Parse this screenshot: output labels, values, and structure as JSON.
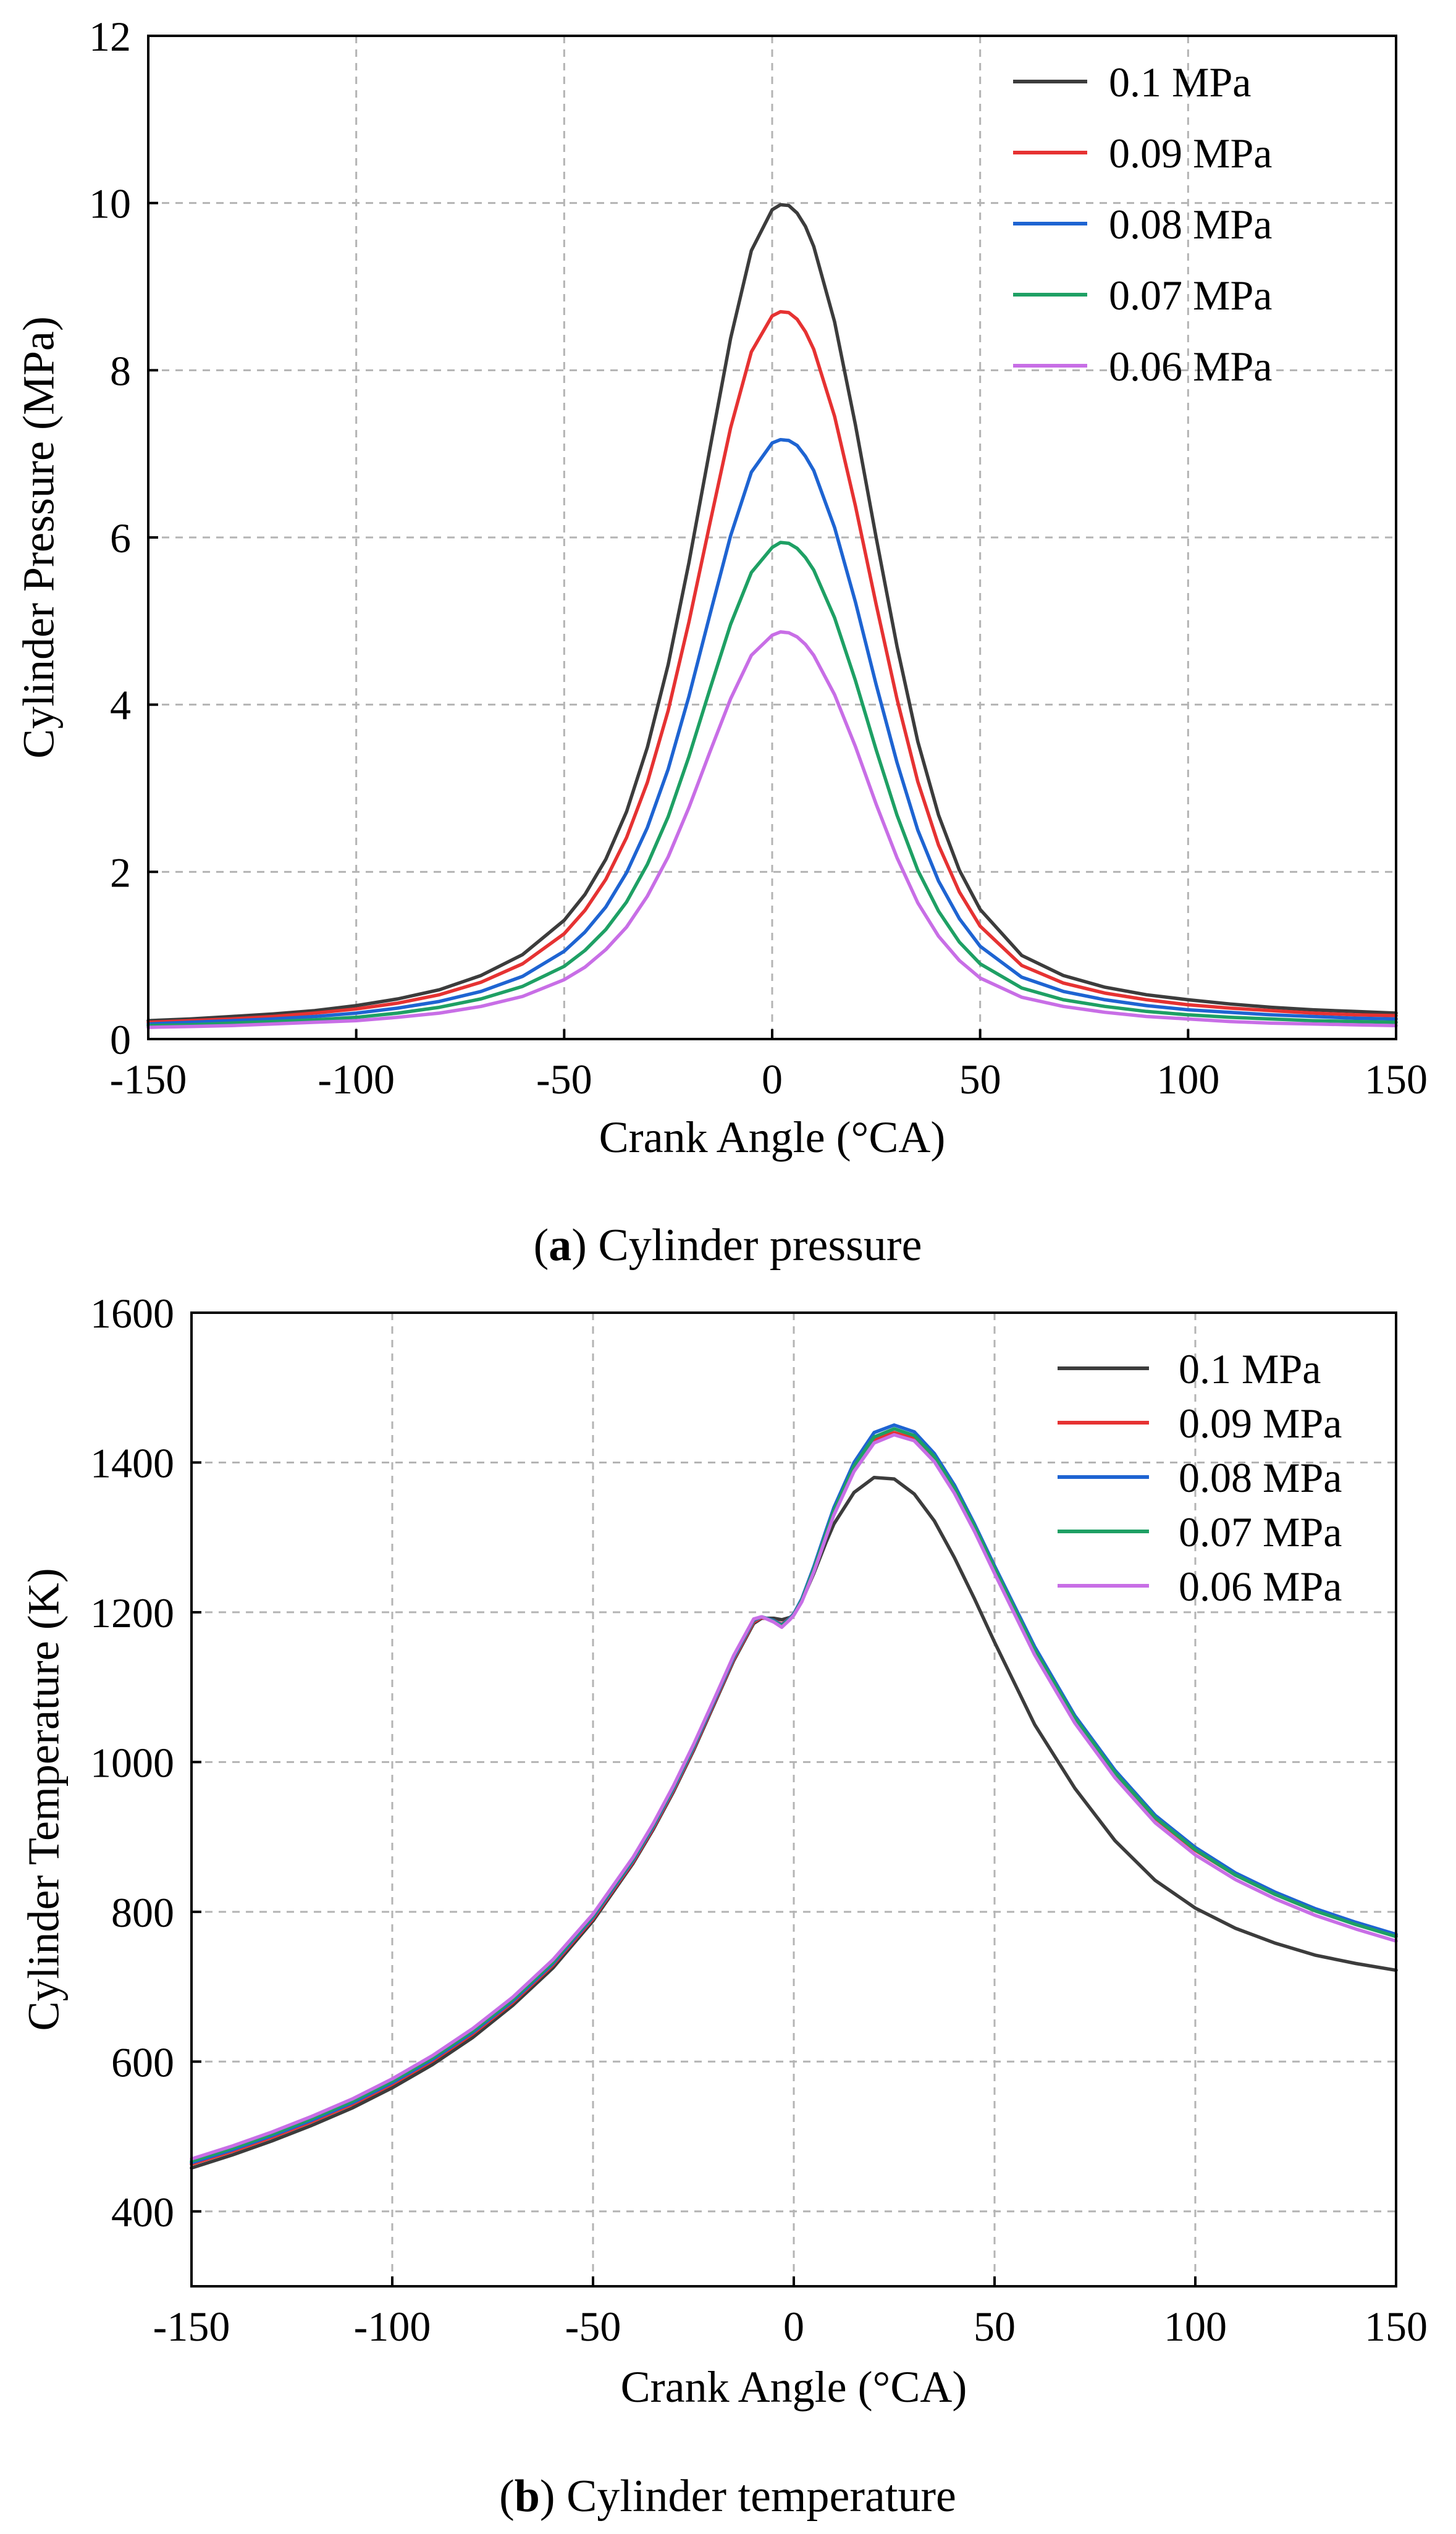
{
  "chart_data": [
    {
      "type": "line",
      "panel": "a",
      "caption_label": "a",
      "caption_text": "Cylinder pressure",
      "xlabel": "Crank Angle (°CA)",
      "ylabel": "Cylinder Pressure (MPa)",
      "xlim": [
        -150,
        150
      ],
      "ylim": [
        0,
        12
      ],
      "xticks": [
        -150,
        -100,
        -50,
        0,
        50,
        100,
        150
      ],
      "yticks": [
        0,
        2,
        4,
        6,
        8,
        10,
        12
      ],
      "grid": true,
      "legend_position": "top-right",
      "x": [
        -150,
        -140,
        -130,
        -120,
        -110,
        -100,
        -90,
        -80,
        -70,
        -60,
        -50,
        -45,
        -40,
        -35,
        -30,
        -25,
        -20,
        -15,
        -10,
        -5,
        0,
        2,
        4,
        6,
        8,
        10,
        15,
        20,
        25,
        30,
        35,
        40,
        45,
        50,
        60,
        70,
        80,
        90,
        100,
        110,
        120,
        130,
        140,
        150
      ],
      "series": [
        {
          "name": "0.1 MPa",
          "color": "#3c3c3c",
          "values": [
            0.22,
            0.24,
            0.27,
            0.3,
            0.34,
            0.4,
            0.48,
            0.59,
            0.76,
            1.01,
            1.42,
            1.73,
            2.15,
            2.72,
            3.49,
            4.48,
            5.7,
            7.05,
            8.38,
            9.43,
            9.92,
            9.98,
            9.97,
            9.88,
            9.72,
            9.48,
            8.58,
            7.35,
            6.0,
            4.7,
            3.56,
            2.68,
            2.02,
            1.55,
            1.0,
            0.76,
            0.62,
            0.53,
            0.47,
            0.42,
            0.38,
            0.35,
            0.33,
            0.31
          ]
        },
        {
          "name": "0.09 MPa",
          "color": "#e63232",
          "values": [
            0.2,
            0.22,
            0.24,
            0.27,
            0.31,
            0.36,
            0.43,
            0.53,
            0.68,
            0.9,
            1.26,
            1.54,
            1.91,
            2.41,
            3.07,
            3.93,
            4.99,
            6.16,
            7.31,
            8.22,
            8.65,
            8.7,
            8.69,
            8.61,
            8.46,
            8.25,
            7.45,
            6.38,
            5.2,
            4.07,
            3.08,
            2.32,
            1.76,
            1.35,
            0.88,
            0.67,
            0.55,
            0.47,
            0.41,
            0.37,
            0.34,
            0.31,
            0.29,
            0.28
          ]
        },
        {
          "name": "0.08 MPa",
          "color": "#1e64d2",
          "values": [
            0.18,
            0.2,
            0.22,
            0.24,
            0.27,
            0.31,
            0.37,
            0.45,
            0.57,
            0.75,
            1.05,
            1.28,
            1.58,
            1.99,
            2.53,
            3.23,
            4.1,
            5.07,
            6.02,
            6.78,
            7.13,
            7.17,
            7.16,
            7.1,
            6.97,
            6.8,
            6.12,
            5.23,
            4.24,
            3.31,
            2.5,
            1.89,
            1.44,
            1.11,
            0.74,
            0.57,
            0.47,
            0.4,
            0.35,
            0.32,
            0.29,
            0.27,
            0.25,
            0.24
          ]
        },
        {
          "name": "0.07 MPa",
          "color": "#1ea064",
          "values": [
            0.16,
            0.17,
            0.19,
            0.21,
            0.23,
            0.26,
            0.31,
            0.38,
            0.48,
            0.63,
            0.87,
            1.06,
            1.31,
            1.64,
            2.09,
            2.66,
            3.38,
            4.18,
            4.96,
            5.58,
            5.88,
            5.94,
            5.93,
            5.87,
            5.76,
            5.61,
            5.04,
            4.29,
            3.46,
            2.68,
            2.02,
            1.53,
            1.16,
            0.9,
            0.61,
            0.47,
            0.39,
            0.33,
            0.29,
            0.26,
            0.24,
            0.22,
            0.21,
            0.2
          ]
        },
        {
          "name": "0.06 MPa",
          "color": "#c86ee6",
          "values": [
            0.14,
            0.15,
            0.16,
            0.18,
            0.2,
            0.22,
            0.26,
            0.31,
            0.39,
            0.51,
            0.71,
            0.86,
            1.07,
            1.34,
            1.71,
            2.18,
            2.77,
            3.43,
            4.07,
            4.59,
            4.83,
            4.87,
            4.86,
            4.81,
            4.72,
            4.59,
            4.12,
            3.5,
            2.81,
            2.17,
            1.63,
            1.23,
            0.94,
            0.73,
            0.5,
            0.39,
            0.32,
            0.27,
            0.24,
            0.21,
            0.19,
            0.18,
            0.17,
            0.16
          ]
        }
      ]
    },
    {
      "type": "line",
      "panel": "b",
      "caption_label": "b",
      "caption_text": "Cylinder temperature",
      "xlabel": "Crank Angle (°CA)",
      "ylabel": "Cylinder Temperature (K)",
      "xlim": [
        -150,
        150
      ],
      "ylim": [
        300,
        1600
      ],
      "xticks": [
        -150,
        -100,
        -50,
        0,
        50,
        100,
        150
      ],
      "yticks": [
        400,
        600,
        800,
        1000,
        1200,
        1400,
        1600
      ],
      "grid": true,
      "legend_position": "top-right",
      "x": [
        -150,
        -140,
        -130,
        -120,
        -110,
        -100,
        -90,
        -80,
        -70,
        -60,
        -50,
        -40,
        -35,
        -30,
        -25,
        -20,
        -15,
        -10,
        -8,
        -5,
        -3,
        -1,
        0,
        2,
        5,
        8,
        10,
        15,
        20,
        25,
        30,
        35,
        40,
        45,
        50,
        60,
        70,
        80,
        90,
        100,
        110,
        120,
        130,
        140,
        150
      ],
      "series": [
        {
          "name": "0.1 MPa",
          "color": "#3c3c3c",
          "values": [
            458,
            475,
            494,
            515,
            538,
            565,
            596,
            632,
            675,
            725,
            788,
            865,
            910,
            960,
            1015,
            1075,
            1135,
            1185,
            1192,
            1192,
            1190,
            1193,
            1197,
            1215,
            1252,
            1293,
            1318,
            1360,
            1380,
            1378,
            1358,
            1322,
            1273,
            1218,
            1160,
            1050,
            965,
            895,
            842,
            805,
            778,
            758,
            742,
            731,
            722
          ]
        },
        {
          "name": "0.09 MPa",
          "color": "#e63232",
          "values": [
            463,
            480,
            499,
            520,
            543,
            570,
            601,
            637,
            679,
            729,
            791,
            867,
            912,
            962,
            1017,
            1077,
            1137,
            1187,
            1193,
            1189,
            1184,
            1192,
            1198,
            1217,
            1258,
            1305,
            1335,
            1392,
            1430,
            1440,
            1432,
            1404,
            1362,
            1310,
            1255,
            1148,
            1058,
            985,
            925,
            882,
            849,
            823,
            801,
            784,
            768
          ]
        },
        {
          "name": "0.08 MPa",
          "color": "#1e64d2",
          "values": [
            465,
            482,
            501,
            522,
            545,
            572,
            603,
            639,
            681,
            731,
            793,
            869,
            914,
            964,
            1019,
            1079,
            1139,
            1189,
            1194,
            1189,
            1183,
            1192,
            1198,
            1218,
            1261,
            1309,
            1340,
            1400,
            1440,
            1450,
            1441,
            1412,
            1370,
            1318,
            1262,
            1154,
            1062,
            989,
            929,
            886,
            852,
            826,
            804,
            786,
            770
          ]
        },
        {
          "name": "0.07 MPa",
          "color": "#1ea064",
          "values": [
            467,
            484,
            503,
            524,
            547,
            574,
            605,
            641,
            683,
            733,
            795,
            871,
            916,
            966,
            1021,
            1081,
            1141,
            1190,
            1194,
            1188,
            1182,
            1191,
            1197,
            1216,
            1258,
            1305,
            1336,
            1395,
            1434,
            1445,
            1436,
            1408,
            1366,
            1315,
            1259,
            1150,
            1059,
            986,
            926,
            883,
            849,
            823,
            801,
            783,
            767
          ]
        },
        {
          "name": "0.06 MPa",
          "color": "#c86ee6",
          "values": [
            470,
            487,
            506,
            527,
            550,
            577,
            608,
            644,
            686,
            736,
            797,
            873,
            918,
            968,
            1023,
            1082,
            1142,
            1191,
            1194,
            1187,
            1180,
            1190,
            1196,
            1214,
            1254,
            1300,
            1330,
            1388,
            1426,
            1437,
            1429,
            1401,
            1359,
            1308,
            1252,
            1143,
            1052,
            979,
            919,
            876,
            843,
            817,
            795,
            777,
            761
          ]
        }
      ]
    }
  ]
}
